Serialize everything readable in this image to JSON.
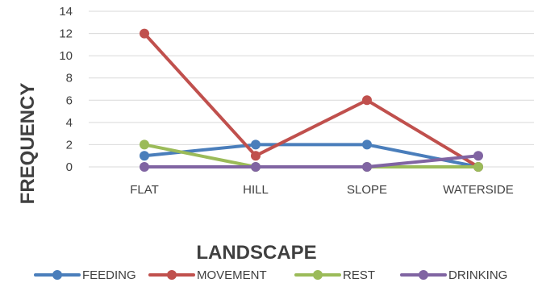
{
  "chart_data": {
    "type": "line",
    "title": "",
    "xlabel": "LANDSCAPE",
    "ylabel": "FREQUENCY",
    "categories": [
      "FLAT",
      "HILL",
      "SLOPE",
      "WATERSIDE"
    ],
    "ylim": [
      0,
      14
    ],
    "yticks": [
      0,
      2,
      4,
      6,
      8,
      10,
      12,
      14
    ],
    "grid": true,
    "legend_position": "bottom",
    "series": [
      {
        "name": "FEEDING",
        "values": [
          1,
          2,
          2,
          0
        ],
        "color": "#4a7ebb"
      },
      {
        "name": "MOVEMENT",
        "values": [
          12,
          1,
          6,
          0
        ],
        "color": "#c0504d"
      },
      {
        "name": "REST",
        "values": [
          2,
          0,
          0,
          0
        ],
        "color": "#9bbb59"
      },
      {
        "name": "DRINKING",
        "values": [
          0,
          0,
          0,
          1
        ],
        "color": "#8064a2"
      }
    ]
  }
}
